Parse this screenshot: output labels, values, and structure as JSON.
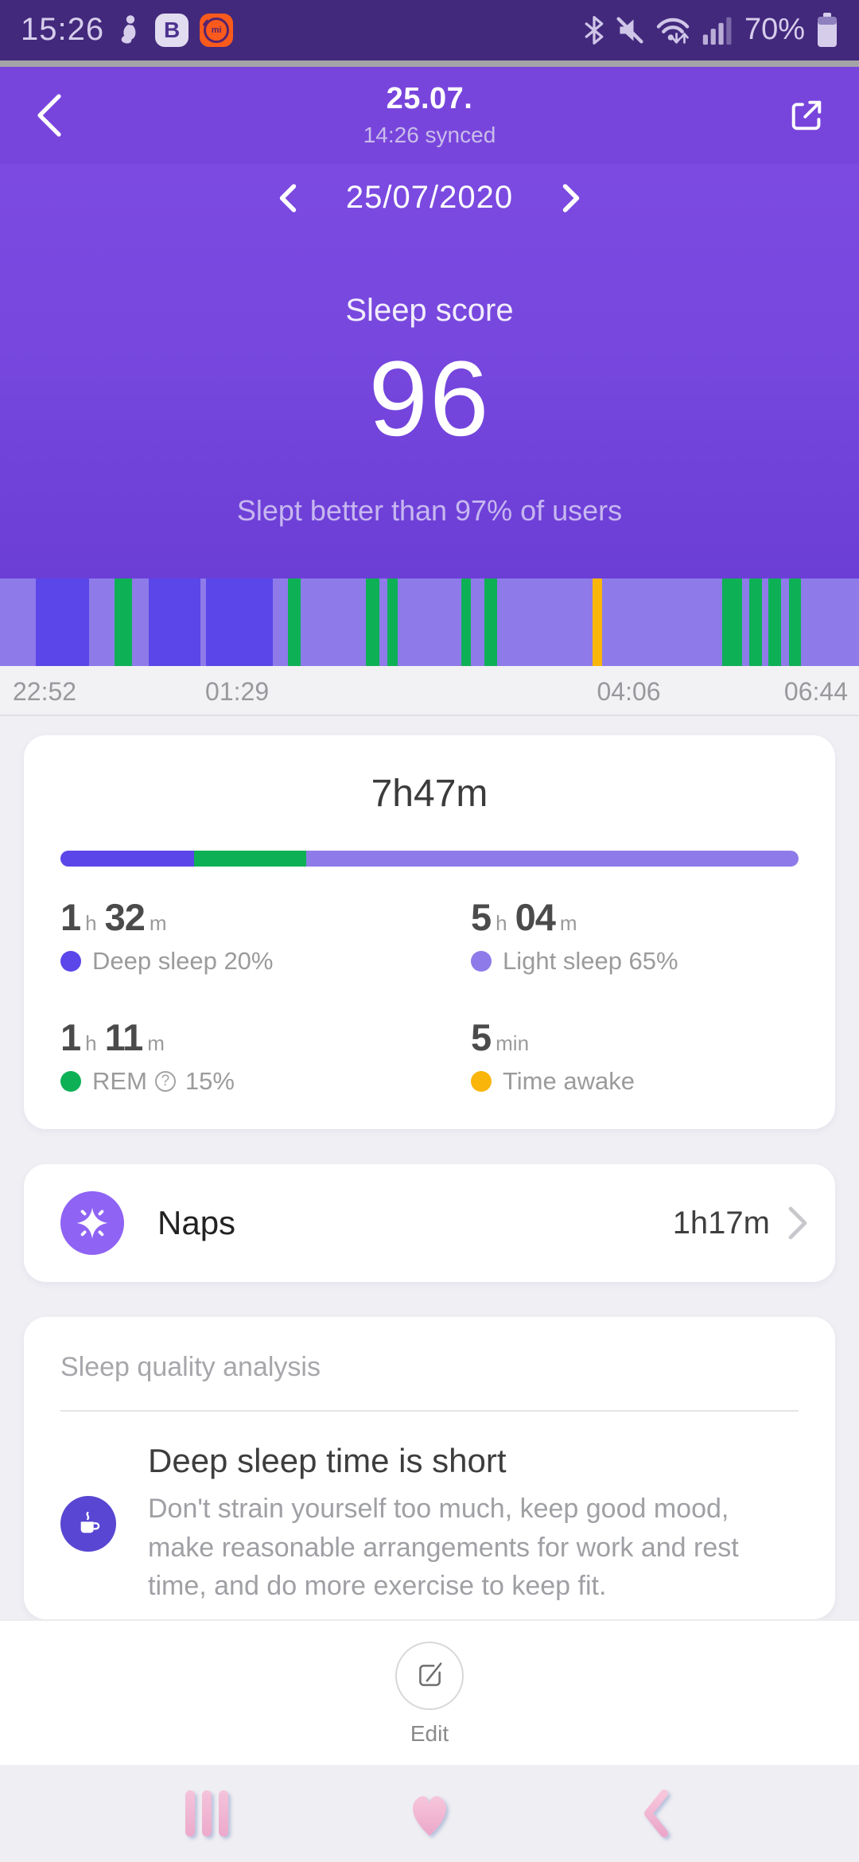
{
  "status_bar": {
    "time": "15:26",
    "badge_b": "B",
    "badge_mi": "mi",
    "battery_pct": "70%"
  },
  "header": {
    "title": "25.07.",
    "synced": "14:26 synced"
  },
  "date_nav": {
    "date": "25/07/2020"
  },
  "score": {
    "label": "Sleep score",
    "value": "96",
    "subtitle": "Slept better than 97% of users"
  },
  "timeline": {
    "labels": [
      "22:52",
      "01:29",
      "04:06",
      "06:44"
    ]
  },
  "chart_data": {
    "type": "bar",
    "title": "Sleep stages hypnogram",
    "x_start": "22:52",
    "x_end": "06:44",
    "tick_labels": [
      "22:52",
      "01:29",
      "04:06",
      "06:44"
    ],
    "stage_colors": {
      "deep": "#5A46E9",
      "light": "#8E7BE9",
      "rem": "#0EB056",
      "awake": "#F9B50A"
    },
    "segments": [
      {
        "stage": "light",
        "pct": 4.2
      },
      {
        "stage": "deep",
        "pct": 6.2
      },
      {
        "stage": "light",
        "pct": 2.9
      },
      {
        "stage": "rem",
        "pct": 2.1
      },
      {
        "stage": "light",
        "pct": 1.9
      },
      {
        "stage": "deep",
        "pct": 6.0
      },
      {
        "stage": "light",
        "pct": 0.7
      },
      {
        "stage": "deep",
        "pct": 7.8
      },
      {
        "stage": "light",
        "pct": 1.7
      },
      {
        "stage": "rem",
        "pct": 1.5
      },
      {
        "stage": "light",
        "pct": 7.6
      },
      {
        "stage": "rem",
        "pct": 1.6
      },
      {
        "stage": "light",
        "pct": 0.9
      },
      {
        "stage": "rem",
        "pct": 1.2
      },
      {
        "stage": "light",
        "pct": 7.4
      },
      {
        "stage": "rem",
        "pct": 1.1
      },
      {
        "stage": "light",
        "pct": 1.6
      },
      {
        "stage": "rem",
        "pct": 1.5
      },
      {
        "stage": "light",
        "pct": 11.1
      },
      {
        "stage": "awake",
        "pct": 1.1
      },
      {
        "stage": "light",
        "pct": 14.0
      },
      {
        "stage": "rem",
        "pct": 2.3
      },
      {
        "stage": "light",
        "pct": 0.8
      },
      {
        "stage": "rem",
        "pct": 1.5
      },
      {
        "stage": "light",
        "pct": 0.8
      },
      {
        "stage": "rem",
        "pct": 1.4
      },
      {
        "stage": "light",
        "pct": 1.0
      },
      {
        "stage": "rem",
        "pct": 1.4
      },
      {
        "stage": "light",
        "pct": 6.7
      }
    ],
    "summary_values": {
      "total": "7h47m",
      "deep": "1h32m (20%)",
      "light": "5h04m (65%)",
      "rem": "1h11m (15%)",
      "awake": "5 min"
    }
  },
  "summary": {
    "total": "7h47m",
    "bar": [
      {
        "stage": "deep",
        "pct": 18.1
      },
      {
        "stage": "rem",
        "pct": 15.2
      },
      {
        "stage": "light",
        "pct": 66.7
      }
    ],
    "stats": [
      {
        "n1": "1",
        "u1": "h",
        "n2": "32",
        "u2": "m",
        "label": "Deep sleep 20%",
        "suffix": ""
      },
      {
        "n1": "5",
        "u1": "h",
        "n2": "04",
        "u2": "m",
        "label": "Light sleep 65%",
        "suffix": ""
      },
      {
        "n1": "1",
        "u1": "h",
        "n2": "11",
        "u2": "m",
        "label": "REM",
        "help": "?",
        "suffix": "15%"
      },
      {
        "n1": "5",
        "u1": "min",
        "n2": "",
        "u2": "",
        "label": "Time awake",
        "suffix": ""
      }
    ]
  },
  "naps": {
    "label": "Naps",
    "value": "1h17m"
  },
  "analysis": {
    "title": "Sleep quality analysis",
    "headline": "Deep sleep time is short",
    "body": "Don't strain yourself too much, keep good mood, make reasonable arrangements for work and rest time, and do more exercise to keep fit."
  },
  "footer": {
    "edit_label": "Edit"
  },
  "colors": {
    "accent_purple": "#7C4BE2",
    "status_bar": "#42297C",
    "nap_icon_bg": "#8F63F4",
    "tip_icon_bg": "#5946D2",
    "nav_pink": "#EFB2D0"
  }
}
